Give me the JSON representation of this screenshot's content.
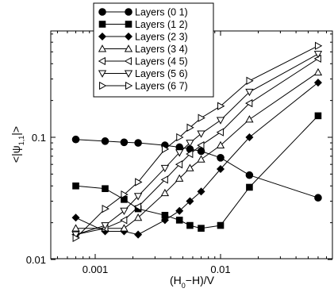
{
  "chart_data": {
    "type": "line",
    "title": "",
    "xlabel": "(H0−H)/V",
    "ylabel": "<|ψ1,1|>",
    "x_scale": "log",
    "y_scale": "log",
    "xlim": [
      0.0006,
      0.07
    ],
    "ylim": [
      0.01,
      0.7
    ],
    "grid": false,
    "legend_position": "top-left",
    "x_ticks": [
      {
        "value": 0.001,
        "label": "0.001"
      },
      {
        "value": 0.01,
        "label": "0.01"
      }
    ],
    "y_ticks": [
      {
        "value": 0.01,
        "label": "0.01"
      },
      {
        "value": 0.1,
        "label": "0.1"
      }
    ],
    "series": [
      {
        "name": "Layers (0 1)",
        "marker": "circle-filled",
        "x": [
          0.0007,
          0.0012,
          0.0017,
          0.0022,
          0.0036,
          0.0047,
          0.0057,
          0.007,
          0.01,
          0.017,
          0.06
        ],
        "y": [
          0.096,
          0.093,
          0.091,
          0.09,
          0.086,
          0.083,
          0.08,
          0.077,
          0.068,
          0.049,
          0.032
        ]
      },
      {
        "name": "Layers (1 2)",
        "marker": "square-filled",
        "x": [
          0.0007,
          0.0012,
          0.0017,
          0.0022,
          0.0036,
          0.0047,
          0.0057,
          0.007,
          0.01,
          0.017,
          0.06
        ],
        "y": [
          0.04,
          0.038,
          0.031,
          0.026,
          0.023,
          0.021,
          0.019,
          0.018,
          0.019,
          0.039,
          0.15
        ]
      },
      {
        "name": "Layers (2 3)",
        "marker": "diamond-filled",
        "x": [
          0.0007,
          0.0012,
          0.0017,
          0.0022,
          0.0036,
          0.0047,
          0.0057,
          0.007,
          0.01,
          0.017,
          0.06
        ],
        "y": [
          0.022,
          0.017,
          0.017,
          0.016,
          0.021,
          0.025,
          0.03,
          0.036,
          0.055,
          0.1,
          0.28
        ]
      },
      {
        "name": "Layers (3 4)",
        "marker": "triangle-up-open",
        "x": [
          0.0007,
          0.0012,
          0.0017,
          0.0022,
          0.0036,
          0.0047,
          0.0057,
          0.007,
          0.01,
          0.017,
          0.06
        ],
        "y": [
          0.018,
          0.018,
          0.018,
          0.022,
          0.035,
          0.046,
          0.056,
          0.066,
          0.086,
          0.14,
          0.34
        ]
      },
      {
        "name": "Layers (4 5)",
        "marker": "triangle-left-open",
        "x": [
          0.0007,
          0.0012,
          0.0017,
          0.0022,
          0.0036,
          0.0047,
          0.0057,
          0.007,
          0.01,
          0.017,
          0.06
        ],
        "y": [
          0.016,
          0.018,
          0.021,
          0.027,
          0.045,
          0.06,
          0.073,
          0.086,
          0.11,
          0.19,
          0.44
        ]
      },
      {
        "name": "Layers (5 6)",
        "marker": "triangle-down-open",
        "x": [
          0.0007,
          0.0012,
          0.0017,
          0.0022,
          0.0036,
          0.0047,
          0.0057,
          0.007,
          0.01,
          0.017,
          0.06
        ],
        "y": [
          0.016,
          0.019,
          0.025,
          0.033,
          0.056,
          0.075,
          0.09,
          0.107,
          0.138,
          0.235,
          0.48
        ]
      },
      {
        "name": "Layers (6 7)",
        "marker": "triangle-right-open",
        "x": [
          0.0007,
          0.0012,
          0.0017,
          0.0022,
          0.0036,
          0.0047,
          0.0057,
          0.007,
          0.01,
          0.017,
          0.06
        ],
        "y": [
          0.015,
          0.026,
          0.034,
          0.043,
          0.08,
          0.1,
          0.12,
          0.144,
          0.18,
          0.29,
          0.56
        ]
      }
    ]
  }
}
